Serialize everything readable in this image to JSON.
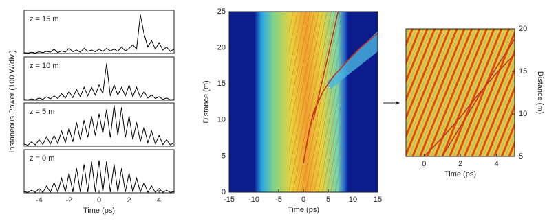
{
  "chart_data": [
    {
      "type": "line",
      "xlabel": "Time (ps)",
      "ylabel": "Instaneous Power (100 W/div.)",
      "xlim": [
        -5,
        5
      ],
      "xticks": [
        -4,
        -2,
        0,
        2,
        4
      ],
      "ylim": [
        0,
        1
      ],
      "x": [
        -5,
        -4.75,
        -4.5,
        -4.25,
        -4,
        -3.75,
        -3.5,
        -3.25,
        -3,
        -2.75,
        -2.5,
        -2.25,
        -2,
        -1.75,
        -1.5,
        -1.25,
        -1,
        -0.75,
        -0.5,
        -0.25,
        0,
        0.25,
        0.5,
        0.75,
        1,
        1.25,
        1.5,
        1.75,
        2,
        2.25,
        2.5,
        2.75,
        3,
        3.25,
        3.5,
        3.75,
        4,
        4.25,
        4.5,
        4.75,
        5
      ],
      "series": [
        {
          "name": "z = 15 m",
          "color": "#000000",
          "values": [
            0.02,
            0.01,
            0.03,
            0.01,
            0.04,
            0.02,
            0.05,
            0.03,
            0.1,
            0.02,
            0.06,
            0.03,
            0.12,
            0.04,
            0.08,
            0.03,
            0.12,
            0.05,
            0.08,
            0.04,
            0.1,
            0.05,
            0.12,
            0.06,
            0.1,
            0.05,
            0.15,
            0.06,
            0.12,
            0.2,
            0.1,
            0.9,
            0.45,
            0.15,
            0.3,
            0.1,
            0.25,
            0.08,
            0.15,
            0.05,
            0.1
          ]
        },
        {
          "name": "z = 10 m",
          "color": "#000000",
          "values": [
            0.02,
            0.01,
            0.03,
            0.01,
            0.05,
            0.02,
            0.08,
            0.03,
            0.1,
            0.04,
            0.15,
            0.05,
            0.2,
            0.06,
            0.25,
            0.08,
            0.3,
            0.1,
            0.3,
            0.12,
            0.35,
            0.15,
            0.85,
            0.1,
            0.35,
            0.12,
            0.3,
            0.1,
            0.35,
            0.08,
            0.3,
            0.06,
            0.2,
            0.05,
            0.12,
            0.04,
            0.08,
            0.02,
            0.05,
            0.01,
            0.02
          ]
        },
        {
          "name": "z = 5 m",
          "color": "#000000",
          "values": [
            0.05,
            0.02,
            0.1,
            0.03,
            0.15,
            0.04,
            0.22,
            0.05,
            0.25,
            0.06,
            0.35,
            0.08,
            0.42,
            0.1,
            0.55,
            0.15,
            0.6,
            0.2,
            0.7,
            0.25,
            0.75,
            0.3,
            0.85,
            0.2,
            0.95,
            0.25,
            0.9,
            0.2,
            0.7,
            0.15,
            0.55,
            0.1,
            0.45,
            0.08,
            0.35,
            0.05,
            0.25,
            0.04,
            0.15,
            0.03,
            0.08
          ]
        },
        {
          "name": "z = 0 m",
          "color": "#000000",
          "values": [
            0.03,
            0.01,
            0.06,
            0.01,
            0.1,
            0.01,
            0.16,
            0.01,
            0.24,
            0.02,
            0.34,
            0.02,
            0.46,
            0.02,
            0.57,
            0.02,
            0.66,
            0.02,
            0.73,
            0.02,
            0.75,
            0.02,
            0.73,
            0.02,
            0.66,
            0.02,
            0.57,
            0.02,
            0.46,
            0.02,
            0.34,
            0.02,
            0.24,
            0.01,
            0.16,
            0.01,
            0.1,
            0.01,
            0.06,
            0.01,
            0.03
          ]
        }
      ]
    },
    {
      "type": "image",
      "xlabel": "Time (ps)",
      "ylabel": "Distance (m)",
      "xlim": [
        -15,
        15
      ],
      "xticks": [
        -15,
        -10,
        -5,
        0,
        5,
        10,
        15
      ],
      "ylim": [
        0,
        25
      ],
      "yticks": [
        0,
        5,
        10,
        15,
        20,
        25
      ],
      "series": [
        {
          "color": "#c8321e",
          "x": [
            0,
            1,
            2,
            4,
            6,
            8,
            10,
            12,
            15
          ],
          "values": [
            4,
            8,
            11,
            14,
            16,
            17.5,
            19,
            20.3,
            22
          ]
        },
        {
          "color": "#c8321e",
          "x": [
            2,
            3,
            4,
            5,
            6,
            7
          ],
          "values": [
            10,
            13,
            16,
            19,
            22,
            25
          ]
        }
      ]
    },
    {
      "type": "image",
      "xlabel": "Time (ps)",
      "ylabel": "Distance (m)",
      "xlim": [
        -1,
        5
      ],
      "xticks": [
        0,
        2,
        4
      ],
      "ylim": [
        5,
        20
      ],
      "yticks": [
        5,
        10,
        15,
        20
      ],
      "series": [
        {
          "color": "#c8321e",
          "x": [
            0,
            1,
            2,
            3,
            4,
            5
          ],
          "values": [
            5,
            7.2,
            9.6,
            12.3,
            14.8,
            17
          ]
        },
        {
          "color": "#c8321e",
          "x": [
            1,
            2,
            3,
            4,
            5
          ],
          "values": [
            5,
            8.5,
            12,
            15.5,
            18.8
          ]
        }
      ]
    }
  ]
}
